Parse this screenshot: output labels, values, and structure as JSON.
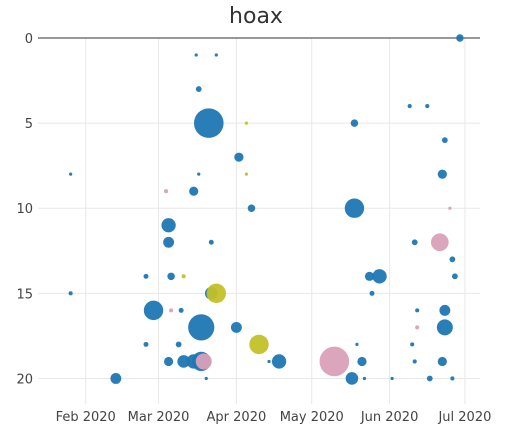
{
  "chart_data": {
    "type": "scatter",
    "title": "hoax",
    "xlabel": "",
    "ylabel": "",
    "x_axis": "date",
    "y_axis": "rank",
    "y_reversed": true,
    "xlim": [
      "2020-01-13",
      "2020-07-07"
    ],
    "ylim": [
      0,
      21.5
    ],
    "x_ticks": [
      {
        "date": "2020-02-01",
        "label": "Feb 2020"
      },
      {
        "date": "2020-03-01",
        "label": "Mar 2020"
      },
      {
        "date": "2020-04-01",
        "label": "Apr 2020"
      },
      {
        "date": "2020-05-01",
        "label": "May 2020"
      },
      {
        "date": "2020-06-01",
        "label": "Jun 2020"
      },
      {
        "date": "2020-07-01",
        "label": "Jul 2020"
      }
    ],
    "y_ticks": [
      0,
      5,
      10,
      15,
      20
    ],
    "grid": true,
    "legend": "none",
    "colors": {
      "blue": "#1f77b4",
      "pink": "#d9a0b8",
      "olive": "#c3c128",
      "grid": "#e8e8e8",
      "axis": "#333333"
    },
    "points": [
      {
        "x": "2020-01-26",
        "y": 8,
        "size": 0.5,
        "color": "blue"
      },
      {
        "x": "2020-01-26",
        "y": 15,
        "size": 1,
        "color": "blue"
      },
      {
        "x": "2020-02-13",
        "y": 20,
        "size": 5,
        "color": "blue"
      },
      {
        "x": "2020-02-25",
        "y": 14,
        "size": 1.5,
        "color": "blue"
      },
      {
        "x": "2020-02-25",
        "y": 18,
        "size": 1.5,
        "color": "blue"
      },
      {
        "x": "2020-02-28",
        "y": 16,
        "size": 10,
        "color": "blue"
      },
      {
        "x": "2020-03-04",
        "y": 9,
        "size": 1,
        "color": "pink"
      },
      {
        "x": "2020-03-05",
        "y": 11,
        "size": 7,
        "color": "blue"
      },
      {
        "x": "2020-03-05",
        "y": 12,
        "size": 5,
        "color": "blue"
      },
      {
        "x": "2020-03-05",
        "y": 19,
        "size": 4,
        "color": "blue"
      },
      {
        "x": "2020-03-06",
        "y": 14,
        "size": 3,
        "color": "blue"
      },
      {
        "x": "2020-03-06",
        "y": 16,
        "size": 1,
        "color": "pink"
      },
      {
        "x": "2020-03-09",
        "y": 18,
        "size": 2,
        "color": "blue"
      },
      {
        "x": "2020-03-10",
        "y": 16,
        "size": 1.5,
        "color": "blue"
      },
      {
        "x": "2020-03-11",
        "y": 14,
        "size": 1,
        "color": "olive"
      },
      {
        "x": "2020-03-11",
        "y": 19,
        "size": 6,
        "color": "blue"
      },
      {
        "x": "2020-03-15",
        "y": 9,
        "size": 4,
        "color": "blue"
      },
      {
        "x": "2020-03-15",
        "y": 19,
        "size": 7,
        "color": "blue"
      },
      {
        "x": "2020-03-16",
        "y": 1,
        "size": 0.5,
        "color": "blue"
      },
      {
        "x": "2020-03-17",
        "y": 3,
        "size": 2,
        "color": "blue"
      },
      {
        "x": "2020-03-17",
        "y": 8,
        "size": 0.5,
        "color": "blue"
      },
      {
        "x": "2020-03-18",
        "y": 17,
        "size": 14,
        "color": "blue"
      },
      {
        "x": "2020-03-18",
        "y": 19,
        "size": 10,
        "color": "blue"
      },
      {
        "x": "2020-03-19",
        "y": 19,
        "size": 8,
        "color": "pink"
      },
      {
        "x": "2020-03-20",
        "y": 20,
        "size": 0.5,
        "color": "blue"
      },
      {
        "x": "2020-03-21",
        "y": 5,
        "size": 16,
        "color": "blue"
      },
      {
        "x": "2020-03-22",
        "y": 12,
        "size": 1.5,
        "color": "blue"
      },
      {
        "x": "2020-03-22",
        "y": 15,
        "size": 6,
        "color": "blue"
      },
      {
        "x": "2020-03-24",
        "y": 15,
        "size": 10,
        "color": "olive"
      },
      {
        "x": "2020-03-24",
        "y": 1,
        "size": 0.5,
        "color": "blue"
      },
      {
        "x": "2020-04-01",
        "y": 17,
        "size": 5,
        "color": "blue"
      },
      {
        "x": "2020-04-02",
        "y": 7,
        "size": 4,
        "color": "blue"
      },
      {
        "x": "2020-04-05",
        "y": 5,
        "size": 0.5,
        "color": "olive"
      },
      {
        "x": "2020-04-05",
        "y": 8,
        "size": 0.5,
        "color": "olive"
      },
      {
        "x": "2020-04-07",
        "y": 10,
        "size": 3,
        "color": "blue"
      },
      {
        "x": "2020-04-10",
        "y": 18,
        "size": 10,
        "color": "olive"
      },
      {
        "x": "2020-04-14",
        "y": 19,
        "size": 0.5,
        "color": "blue"
      },
      {
        "x": "2020-04-18",
        "y": 19,
        "size": 7,
        "color": "blue"
      },
      {
        "x": "2020-05-10",
        "y": 19,
        "size": 16,
        "color": "pink"
      },
      {
        "x": "2020-05-17",
        "y": 20,
        "size": 6,
        "color": "blue"
      },
      {
        "x": "2020-05-18",
        "y": 5,
        "size": 3,
        "color": "blue"
      },
      {
        "x": "2020-05-18",
        "y": 10,
        "size": 10,
        "color": "blue"
      },
      {
        "x": "2020-05-19",
        "y": 18,
        "size": 0.5,
        "color": "blue"
      },
      {
        "x": "2020-05-21",
        "y": 19,
        "size": 4,
        "color": "blue"
      },
      {
        "x": "2020-05-22",
        "y": 20,
        "size": 0.5,
        "color": "blue"
      },
      {
        "x": "2020-05-24",
        "y": 14,
        "size": 4,
        "color": "blue"
      },
      {
        "x": "2020-05-25",
        "y": 15,
        "size": 1.5,
        "color": "blue"
      },
      {
        "x": "2020-05-28",
        "y": 14,
        "size": 7,
        "color": "blue"
      },
      {
        "x": "2020-06-02",
        "y": 20,
        "size": 0.5,
        "color": "blue"
      },
      {
        "x": "2020-06-09",
        "y": 4,
        "size": 1,
        "color": "blue"
      },
      {
        "x": "2020-06-10",
        "y": 18,
        "size": 1,
        "color": "blue"
      },
      {
        "x": "2020-06-11",
        "y": 12,
        "size": 2,
        "color": "blue"
      },
      {
        "x": "2020-06-11",
        "y": 19,
        "size": 1,
        "color": "blue"
      },
      {
        "x": "2020-06-12",
        "y": 16,
        "size": 1,
        "color": "blue"
      },
      {
        "x": "2020-06-12",
        "y": 17,
        "size": 1,
        "color": "pink"
      },
      {
        "x": "2020-06-16",
        "y": 4,
        "size": 1,
        "color": "blue"
      },
      {
        "x": "2020-06-17",
        "y": 20,
        "size": 2,
        "color": "blue"
      },
      {
        "x": "2020-06-21",
        "y": 12,
        "size": 9,
        "color": "pink"
      },
      {
        "x": "2020-06-22",
        "y": 8,
        "size": 4,
        "color": "blue"
      },
      {
        "x": "2020-06-22",
        "y": 19,
        "size": 4,
        "color": "blue"
      },
      {
        "x": "2020-06-23",
        "y": 6,
        "size": 2,
        "color": "blue"
      },
      {
        "x": "2020-06-23",
        "y": 16,
        "size": 5,
        "color": "blue"
      },
      {
        "x": "2020-06-23",
        "y": 17,
        "size": 8,
        "color": "blue"
      },
      {
        "x": "2020-06-25",
        "y": 10,
        "size": 0.5,
        "color": "pink"
      },
      {
        "x": "2020-06-26",
        "y": 13,
        "size": 2,
        "color": "blue"
      },
      {
        "x": "2020-06-26",
        "y": 20,
        "size": 1,
        "color": "blue"
      },
      {
        "x": "2020-06-27",
        "y": 14,
        "size": 2,
        "color": "blue"
      },
      {
        "x": "2020-06-29",
        "y": 0,
        "size": 3,
        "color": "blue"
      }
    ]
  }
}
